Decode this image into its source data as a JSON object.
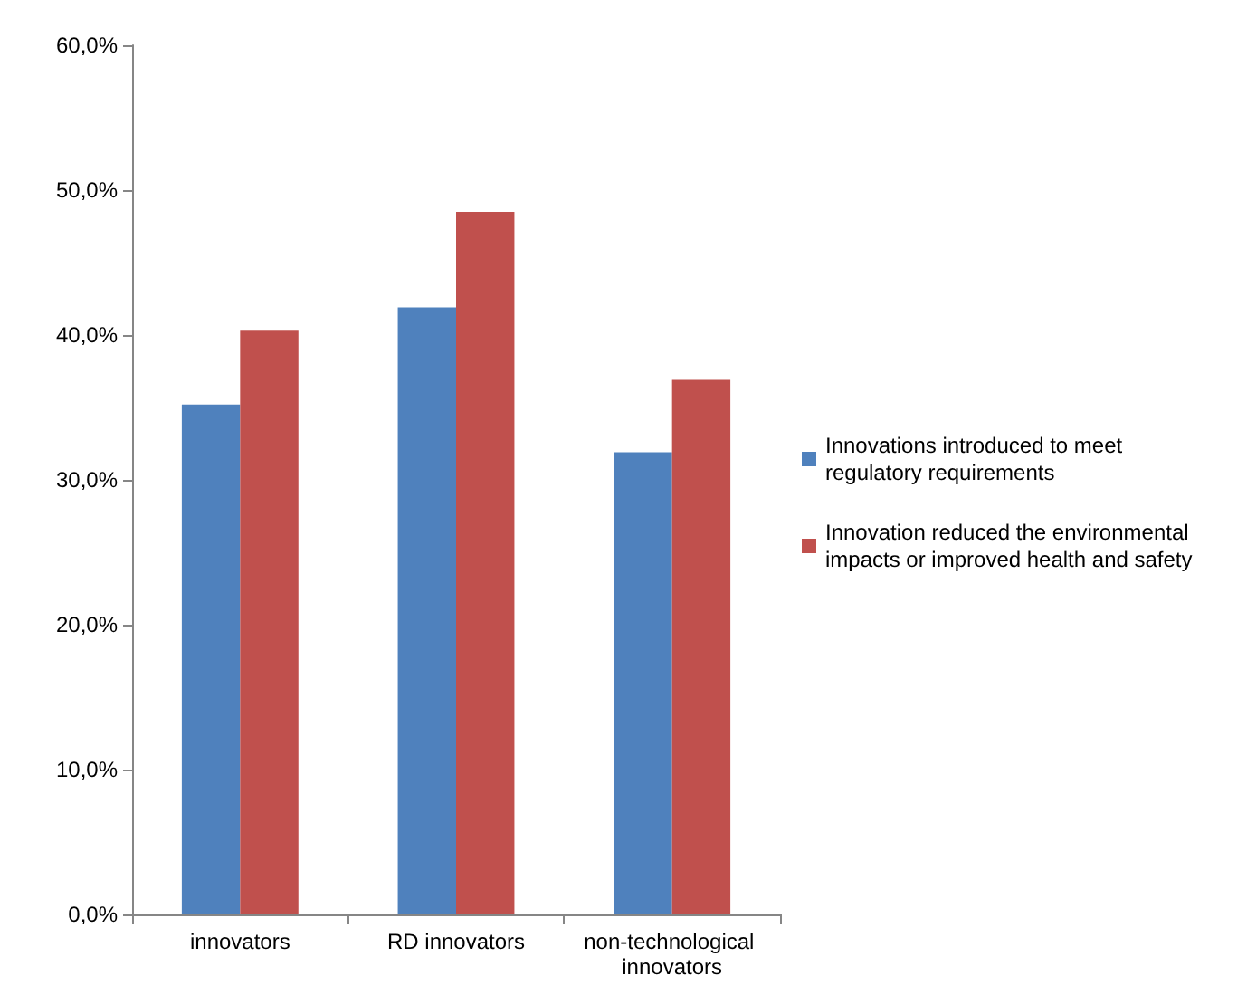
{
  "chart_data": {
    "type": "bar",
    "categories": [
      "innovators",
      "RD innovators",
      "non-technological innovators"
    ],
    "series": [
      {
        "name": "Innovations introduced to meet regulatory requirements",
        "color": "#4f81bd",
        "values": [
          35.2,
          41.9,
          31.9
        ]
      },
      {
        "name": "Innovation reduced the environmental impacts or improved health and safety",
        "color": "#c0504d",
        "values": [
          40.3,
          48.5,
          36.9
        ]
      }
    ],
    "ylim": [
      0,
      60
    ],
    "yticks": [
      {
        "value": 0,
        "label": "0,0%"
      },
      {
        "value": 10,
        "label": "10,0%"
      },
      {
        "value": 20,
        "label": "20,0%"
      },
      {
        "value": 30,
        "label": "30,0%"
      },
      {
        "value": 40,
        "label": "40,0%"
      },
      {
        "value": 50,
        "label": "50,0%"
      },
      {
        "value": 60,
        "label": "60,0%"
      }
    ],
    "grid": false,
    "legend": "right"
  }
}
